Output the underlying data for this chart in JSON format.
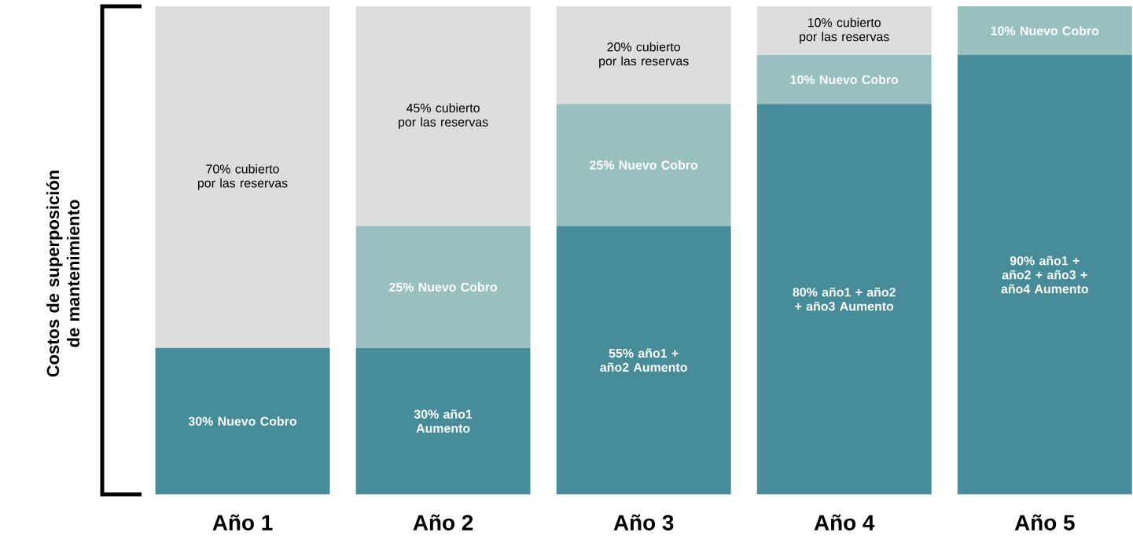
{
  "chart_data": {
    "type": "bar",
    "stacked": true,
    "ylabel": "Costos de superposición de mantenimiento",
    "categories": [
      "Año 1",
      "Año 2",
      "Año 3",
      "Año 4",
      "Año 5"
    ],
    "tick_labels": "x",
    "series": [
      {
        "color": "#478c98",
        "values": [
          30,
          30,
          55,
          80,
          90
        ],
        "value_labels": [
          "30% Nuevo Cobro",
          "30% año1 Aumento",
          "55% año1 + año2 Aumento",
          "80% año1 + año2 + año3 Aumento",
          "90% año1 + año2 + año3 + año4 Aumento"
        ]
      },
      {
        "color": "#99bfbf",
        "values": [
          null,
          25,
          25,
          10,
          10
        ],
        "value_labels": [
          null,
          "25% Nuevo Cobro",
          "25% Nuevo Cobro",
          "10% Nuevo Cobro",
          "10% Nuevo Cobro"
        ]
      },
      {
        "color": "#dddddd",
        "values": [
          70,
          45,
          20,
          10,
          null
        ],
        "value_labels": [
          "70% cubierto por las reservas",
          "45% cubierto por las reservas",
          "20% cubierto por las reservas",
          "10% cubierto por las reservas",
          null
        ]
      }
    ]
  }
}
